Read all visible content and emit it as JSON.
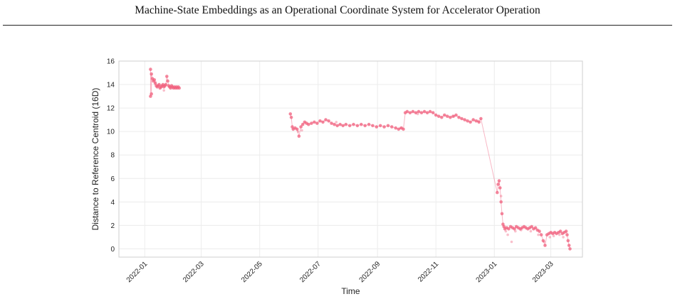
{
  "header": {
    "title": "Machine-State Embeddings as an Operational Coordinate System for Accelerator Operation"
  },
  "chart_data": {
    "type": "scatter",
    "title": "",
    "xlabel": "Time",
    "ylabel": "Distance to Reference Centroid (16D)",
    "x_is_date": true,
    "xlim": [
      "2021-12-05",
      "2023-04-03"
    ],
    "ylim": [
      -0.7,
      16
    ],
    "yticks": [
      0,
      2,
      4,
      6,
      8,
      10,
      12,
      14,
      16
    ],
    "xticks": [
      "2022-01",
      "2022-03",
      "2022-05",
      "2022-07",
      "2022-09",
      "2022-11",
      "2023-01",
      "2023-03"
    ],
    "grid": true,
    "point_color": "#f0607e",
    "series": [
      {
        "x": [
          "2022-01-07",
          "2022-01-07",
          "2022-01-08",
          "2022-01-08",
          "2022-01-09",
          "2022-01-10",
          "2022-01-11",
          "2022-01-12",
          "2022-01-13",
          "2022-01-14",
          "2022-01-15",
          "2022-01-16",
          "2022-01-17",
          "2022-01-18",
          "2022-01-19",
          "2022-01-20",
          "2022-01-21",
          "2022-01-22",
          "2022-01-23",
          "2022-01-24",
          "2022-01-25",
          "2022-01-26",
          "2022-01-27",
          "2022-01-28",
          "2022-01-29",
          "2022-01-30",
          "2022-01-31",
          "2022-02-01",
          "2022-02-02",
          "2022-02-03",
          "2022-02-04",
          "2022-02-05",
          "2022-02-06",
          "2022-06-02",
          "2022-06-03",
          "2022-06-04",
          "2022-06-05",
          "2022-06-07",
          "2022-06-09",
          "2022-06-11",
          "2022-06-13",
          "2022-06-15",
          "2022-06-17",
          "2022-06-19",
          "2022-06-21",
          "2022-06-24",
          "2022-06-27",
          "2022-06-30",
          "2022-07-03",
          "2022-07-06",
          "2022-07-09",
          "2022-07-12",
          "2022-07-15",
          "2022-07-18",
          "2022-07-21",
          "2022-07-24",
          "2022-07-27",
          "2022-07-30",
          "2022-08-03",
          "2022-08-07",
          "2022-08-11",
          "2022-08-15",
          "2022-08-19",
          "2022-08-23",
          "2022-08-27",
          "2022-08-31",
          "2022-09-04",
          "2022-09-08",
          "2022-09-12",
          "2022-09-16",
          "2022-09-20",
          "2022-09-23",
          "2022-09-26",
          "2022-09-28",
          "2022-09-30",
          "2022-10-02",
          "2022-10-05",
          "2022-10-08",
          "2022-10-11",
          "2022-10-14",
          "2022-10-17",
          "2022-10-20",
          "2022-10-23",
          "2022-10-26",
          "2022-10-29",
          "2022-11-01",
          "2022-11-04",
          "2022-11-07",
          "2022-11-10",
          "2022-11-13",
          "2022-11-16",
          "2022-11-19",
          "2022-11-22",
          "2022-11-25",
          "2022-11-28",
          "2022-12-01",
          "2022-12-04",
          "2022-12-07",
          "2022-12-10",
          "2022-12-13",
          "2022-12-16",
          "2022-12-18",
          "2023-01-04",
          "2023-01-05",
          "2023-01-06",
          "2023-01-07",
          "2023-01-08",
          "2023-01-09",
          "2023-01-10",
          "2023-01-11",
          "2023-01-12",
          "2023-01-14",
          "2023-01-16",
          "2023-01-18",
          "2023-01-20",
          "2023-01-22",
          "2023-01-24",
          "2023-01-26",
          "2023-01-28",
          "2023-01-30",
          "2023-02-01",
          "2023-02-03",
          "2023-02-05",
          "2023-02-07",
          "2023-02-09",
          "2023-02-11",
          "2023-02-13",
          "2023-02-15",
          "2023-02-17",
          "2023-02-19",
          "2023-02-21",
          "2023-02-23",
          "2023-02-25",
          "2023-02-27",
          "2023-03-01",
          "2023-03-03",
          "2023-03-05",
          "2023-03-07",
          "2023-03-09",
          "2023-03-11",
          "2023-03-13",
          "2023-03-15",
          "2023-03-17",
          "2023-03-18",
          "2023-03-19",
          "2023-03-20",
          "2023-03-21"
        ],
        "y": [
          13.0,
          15.3,
          13.2,
          14.9,
          14.5,
          14.3,
          14.4,
          14.1,
          13.9,
          13.8,
          13.9,
          14.0,
          13.7,
          13.8,
          13.9,
          14.0,
          13.8,
          13.9,
          14.0,
          14.7,
          14.3,
          13.9,
          13.8,
          13.7,
          13.9,
          13.8,
          13.7,
          13.8,
          13.7,
          13.8,
          13.7,
          13.8,
          13.7,
          11.5,
          11.2,
          10.4,
          10.2,
          10.3,
          10.2,
          9.6,
          10.4,
          10.6,
          10.8,
          10.7,
          10.6,
          10.7,
          10.8,
          10.7,
          10.9,
          10.8,
          11.0,
          10.9,
          10.7,
          10.6,
          10.5,
          10.6,
          10.5,
          10.6,
          10.5,
          10.6,
          10.5,
          10.6,
          10.5,
          10.6,
          10.5,
          10.4,
          10.5,
          10.4,
          10.5,
          10.4,
          10.3,
          10.2,
          10.3,
          10.2,
          11.6,
          11.7,
          11.6,
          11.7,
          11.6,
          11.7,
          11.6,
          11.7,
          11.6,
          11.7,
          11.6,
          11.4,
          11.3,
          11.2,
          11.4,
          11.3,
          11.2,
          11.3,
          11.4,
          11.2,
          11.1,
          11.0,
          10.9,
          10.8,
          11.0,
          10.9,
          10.8,
          11.1,
          4.8,
          5.5,
          5.8,
          5.2,
          4.0,
          3.0,
          2.1,
          1.9,
          1.7,
          1.8,
          1.7,
          1.9,
          1.8,
          1.7,
          1.9,
          1.8,
          1.7,
          1.8,
          1.9,
          1.8,
          1.7,
          1.8,
          1.9,
          1.7,
          1.8,
          1.6,
          1.5,
          1.2,
          0.7,
          0.3,
          1.2,
          1.3,
          1.4,
          1.3,
          1.4,
          1.3,
          1.4,
          1.5,
          1.3,
          1.4,
          1.5,
          1.2,
          0.7,
          0.3,
          0.0
        ]
      },
      {
        "x": [
          "2022-01-12",
          "2022-01-21",
          "2022-06-10",
          "2022-06-14",
          "2022-07-20",
          "2022-09-25",
          "2022-10-13",
          "2022-11-20",
          "2022-12-15",
          "2023-01-08",
          "2023-01-13",
          "2023-01-15",
          "2023-01-19",
          "2023-01-23",
          "2023-01-29",
          "2023-02-08",
          "2023-02-16",
          "2023-02-22",
          "2023-02-28",
          "2023-03-04",
          "2023-03-10",
          "2023-03-14"
        ],
        "y": [
          14.2,
          13.5,
          10.0,
          10.1,
          10.8,
          10.3,
          11.5,
          11.3,
          10.9,
          4.5,
          1.5,
          1.2,
          0.6,
          1.5,
          1.6,
          1.5,
          1.2,
          0.6,
          1.0,
          1.1,
          1.2,
          1.0
        ],
        "faint": true
      }
    ]
  }
}
